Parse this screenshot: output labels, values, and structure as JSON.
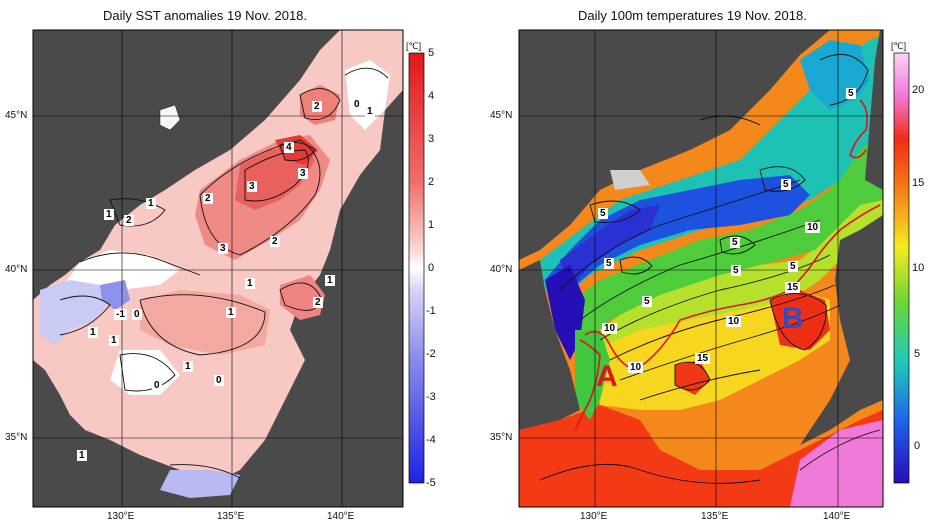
{
  "left_panel": {
    "title": "Daily SST anomalies 19 Nov. 2018.",
    "unit": "[℃]",
    "colorbar_ticks": [
      "5",
      "4",
      "3",
      "2",
      "1",
      "0",
      "-1",
      "-2",
      "-3",
      "-4",
      "-5"
    ],
    "contour_labels": [
      "2",
      "0",
      "1",
      "4",
      "3",
      "3",
      "2",
      "3",
      "2",
      "1",
      "2",
      "1",
      "1",
      "2",
      "1",
      "-1",
      "0",
      "1",
      "1",
      "1",
      "0",
      "0",
      "1",
      "1"
    ],
    "colors": {
      "positive_high": "#e3262b",
      "positive_low": "#f4b4b0",
      "near_zero": "#ffffff",
      "negative": "#7f82e6",
      "land": "#4a4a4a"
    }
  },
  "right_panel": {
    "title": "Daily 100m temperatures 19 Nov. 2018.",
    "unit": "[℃]",
    "colorbar_ticks": [
      "20",
      "15",
      "10",
      "5",
      "0"
    ],
    "contour_labels": [
      "5",
      "5",
      "5",
      "5",
      "5",
      "5",
      "5",
      "10",
      "5",
      "15",
      "10",
      "10",
      "15",
      "10"
    ],
    "region_labels": [
      "A",
      "B"
    ],
    "colors": {
      "cold": "#1d3fd0",
      "cool": "#16b0c8",
      "mild": "#58d23c",
      "warm": "#f7e21c",
      "hot": "#f44a12",
      "very_hot": "#f07ad8",
      "land": "#4a4a4a",
      "front_line": "#e0141e"
    }
  },
  "axes": {
    "lat_labels": [
      "45°N",
      "40°N",
      "35°N"
    ],
    "lon_labels": [
      "130°E",
      "135°E",
      "140°E"
    ]
  }
}
